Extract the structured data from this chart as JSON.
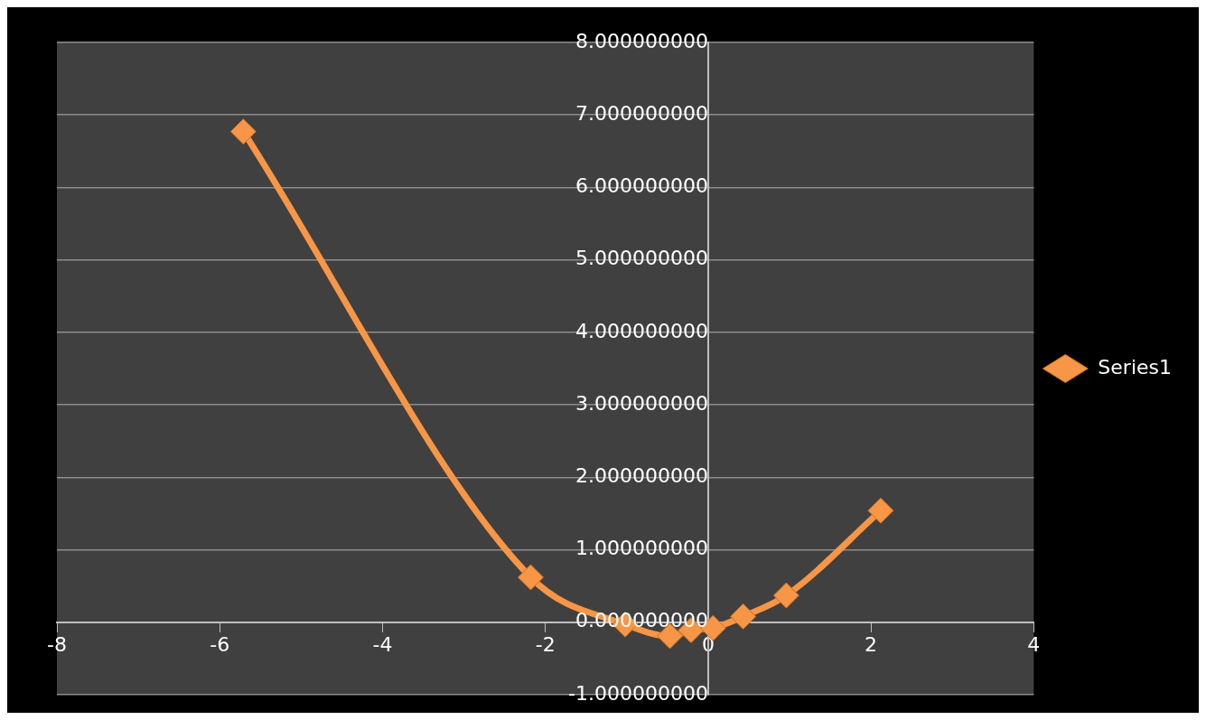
{
  "chart_data": {
    "type": "scatter",
    "x": [
      -5.71,
      -2.18,
      -1.02,
      -0.47,
      -0.21,
      0.06,
      0.43,
      0.96,
      2.12
    ],
    "series": [
      {
        "name": "Series1",
        "color": "#f79646",
        "type": "line",
        "values": [
          6.77,
          0.62,
          -0.03,
          -0.19,
          -0.11,
          -0.08,
          0.08,
          0.37,
          1.54
        ]
      }
    ],
    "xlim": [
      -8,
      4
    ],
    "xticks": [
      -8,
      -6,
      -4,
      -2,
      0,
      2,
      4
    ],
    "ylim": [
      -1,
      8
    ],
    "yticks": [
      {
        "value": -1,
        "label": "-1.000000000"
      },
      {
        "value": 0,
        "label": "0.000000000"
      },
      {
        "value": 1,
        "label": "1.000000000"
      },
      {
        "value": 2,
        "label": "2.000000000"
      },
      {
        "value": 3,
        "label": "3.000000000"
      },
      {
        "value": 4,
        "label": "4.000000000"
      },
      {
        "value": 5,
        "label": "5.000000000"
      },
      {
        "value": 6,
        "label": "6.000000000"
      },
      {
        "value": 7,
        "label": "7.000000000"
      },
      {
        "value": 8,
        "label": "8.000000000"
      }
    ],
    "grid": "y",
    "legend": "right",
    "marker": "diamond",
    "line_style": "solid"
  }
}
